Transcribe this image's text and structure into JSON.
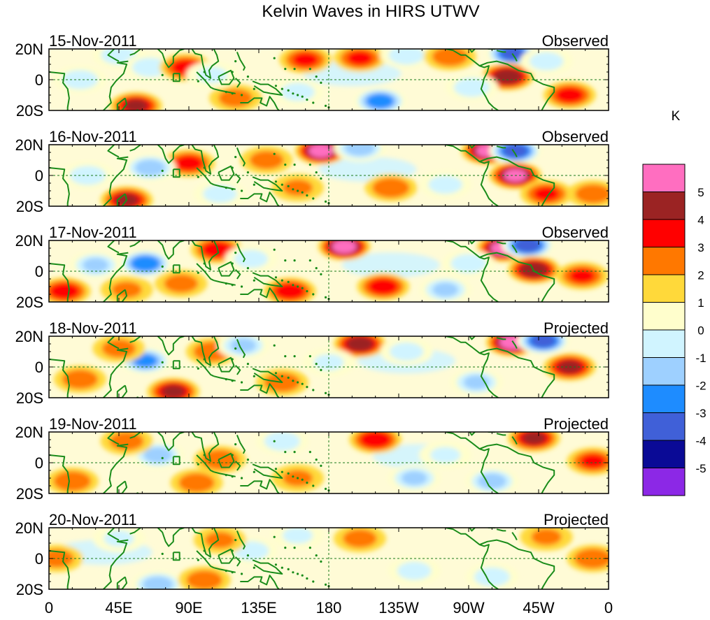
{
  "chart_data": {
    "type": "heatmap",
    "title": "Kelvin Waves in HIRS UTWV",
    "units": "K",
    "x_ticks": [
      "0",
      "45E",
      "90E",
      "135E",
      "180",
      "135W",
      "90W",
      "45W",
      "0"
    ],
    "y_ticks": [
      "20N",
      "0",
      "20S"
    ],
    "lon_range": [
      0,
      360
    ],
    "lat_range": [
      -20,
      20
    ],
    "colorbar": {
      "labels": [
        "5",
        "4",
        "3",
        "2",
        "1",
        "0",
        "-1",
        "-2",
        "-3",
        "-4",
        "-5"
      ],
      "colors": [
        "#ff6ec0",
        "#9b2323",
        "#ff0000",
        "#ff7800",
        "#ffd93a",
        "#fffecc",
        "#d0f4ff",
        "#9ed0ff",
        "#1e8cff",
        "#4060d8",
        "#0a0a96",
        "#8c28e6"
      ]
    },
    "panels": [
      {
        "date": "15-Nov-2011",
        "status": "Observed",
        "anomalies": [
          {
            "lon": 165,
            "lat": 13,
            "value": 2.5
          },
          {
            "lon": 200,
            "lat": 14,
            "value": 2.5
          },
          {
            "lon": 298,
            "lat": 17,
            "value": -4.5
          },
          {
            "lon": 295,
            "lat": 2,
            "value": 4.2
          },
          {
            "lon": 56,
            "lat": -17,
            "value": 3.5
          },
          {
            "lon": 213,
            "lat": -14,
            "value": -4.0
          },
          {
            "lon": 335,
            "lat": -10,
            "value": 2.8
          },
          {
            "lon": 45,
            "lat": 16,
            "value": -2.0
          },
          {
            "lon": 65,
            "lat": 8,
            "value": -2.0
          },
          {
            "lon": 88,
            "lat": 8,
            "value": 2.8
          },
          {
            "lon": 20,
            "lat": 0,
            "value": -2.0
          },
          {
            "lon": 272,
            "lat": -5,
            "value": -2.0
          },
          {
            "lon": 230,
            "lat": 16,
            "value": -2.0
          },
          {
            "lon": 258,
            "lat": 15,
            "value": 2.0
          },
          {
            "lon": 120,
            "lat": -12,
            "value": 1.8
          },
          {
            "lon": 160,
            "lat": -8,
            "value": -1.8
          },
          {
            "lon": 320,
            "lat": 12,
            "value": -1.8
          },
          {
            "lon": 105,
            "lat": 3,
            "value": -1.5
          }
        ]
      },
      {
        "date": "16-Nov-2011",
        "status": "Observed",
        "anomalies": [
          {
            "lon": 175,
            "lat": 16,
            "value": 4.8
          },
          {
            "lon": 282,
            "lat": 16,
            "value": 4.5
          },
          {
            "lon": 300,
            "lat": 16,
            "value": -4.8
          },
          {
            "lon": 300,
            "lat": 0,
            "value": 4.5
          },
          {
            "lon": 220,
            "lat": -8,
            "value": 2.2
          },
          {
            "lon": 90,
            "lat": 8,
            "value": 2.8
          },
          {
            "lon": 65,
            "lat": 5,
            "value": -3.0
          },
          {
            "lon": 50,
            "lat": -16,
            "value": 3.5
          },
          {
            "lon": 320,
            "lat": -12,
            "value": 2.5
          },
          {
            "lon": 350,
            "lat": -12,
            "value": 2.0
          },
          {
            "lon": 200,
            "lat": 18,
            "value": -3.0
          },
          {
            "lon": 25,
            "lat": 0,
            "value": -2.0
          },
          {
            "lon": 140,
            "lat": 10,
            "value": 1.8
          },
          {
            "lon": 110,
            "lat": -12,
            "value": -1.8
          },
          {
            "lon": 255,
            "lat": -6,
            "value": -1.8
          },
          {
            "lon": 160,
            "lat": -8,
            "value": 1.5
          }
        ]
      },
      {
        "date": "17-Nov-2011",
        "status": "Observed",
        "anomalies": [
          {
            "lon": 190,
            "lat": 16,
            "value": 4.8
          },
          {
            "lon": 292,
            "lat": 15,
            "value": 4.8
          },
          {
            "lon": 308,
            "lat": 17,
            "value": -5.0
          },
          {
            "lon": 312,
            "lat": 1,
            "value": 4.2
          },
          {
            "lon": 62,
            "lat": 5,
            "value": -4.3
          },
          {
            "lon": 108,
            "lat": 14,
            "value": 3.0
          },
          {
            "lon": 155,
            "lat": -13,
            "value": 3.0
          },
          {
            "lon": 215,
            "lat": -10,
            "value": 3.0
          },
          {
            "lon": 255,
            "lat": -12,
            "value": -2.5
          },
          {
            "lon": 10,
            "lat": -13,
            "value": 3.0
          },
          {
            "lon": 30,
            "lat": 4,
            "value": -2.5
          },
          {
            "lon": 343,
            "lat": -3,
            "value": 2.5
          },
          {
            "lon": 130,
            "lat": 8,
            "value": -1.8
          },
          {
            "lon": 85,
            "lat": -8,
            "value": 1.8
          },
          {
            "lon": 270,
            "lat": 5,
            "value": -2.0
          },
          {
            "lon": 50,
            "lat": -12,
            "value": 1.5
          }
        ]
      },
      {
        "date": "18-Nov-2011",
        "status": "Projected",
        "anomalies": [
          {
            "lon": 200,
            "lat": 15,
            "value": 4.0
          },
          {
            "lon": 298,
            "lat": 16,
            "value": 5.0
          },
          {
            "lon": 318,
            "lat": 17,
            "value": -4.8
          },
          {
            "lon": 335,
            "lat": 0,
            "value": 3.5
          },
          {
            "lon": 80,
            "lat": -16,
            "value": 3.5
          },
          {
            "lon": 62,
            "lat": 4,
            "value": -3.5
          },
          {
            "lon": 105,
            "lat": 10,
            "value": 2.2
          },
          {
            "lon": 125,
            "lat": 14,
            "value": -2.5
          },
          {
            "lon": 275,
            "lat": -10,
            "value": -2.5
          },
          {
            "lon": 20,
            "lat": -8,
            "value": 2.0
          },
          {
            "lon": 150,
            "lat": -10,
            "value": 2.0
          },
          {
            "lon": 230,
            "lat": 10,
            "value": -1.8
          },
          {
            "lon": 180,
            "lat": 3,
            "value": -1.5
          },
          {
            "lon": 45,
            "lat": 12,
            "value": 1.8
          }
        ]
      },
      {
        "date": "19-Nov-2011",
        "status": "Projected",
        "anomalies": [
          {
            "lon": 210,
            "lat": 15,
            "value": 3.2
          },
          {
            "lon": 312,
            "lat": 16,
            "value": 3.5
          },
          {
            "lon": 350,
            "lat": 1,
            "value": 2.5
          },
          {
            "lon": 70,
            "lat": 5,
            "value": -2.8
          },
          {
            "lon": 110,
            "lat": 2,
            "value": 2.2
          },
          {
            "lon": 150,
            "lat": 14,
            "value": -2.0
          },
          {
            "lon": 285,
            "lat": -12,
            "value": -2.8
          },
          {
            "lon": 235,
            "lat": -10,
            "value": -2.5
          },
          {
            "lon": 15,
            "lat": -12,
            "value": 2.2
          },
          {
            "lon": 50,
            "lat": 14,
            "value": 1.8
          },
          {
            "lon": 95,
            "lat": -13,
            "value": 2.0
          },
          {
            "lon": 160,
            "lat": -10,
            "value": 1.5
          },
          {
            "lon": 255,
            "lat": 5,
            "value": -1.5
          }
        ]
      },
      {
        "date": "20-Nov-2011",
        "status": "Projected",
        "anomalies": [
          {
            "lon": 5,
            "lat": 0,
            "value": 1.8
          },
          {
            "lon": 70,
            "lat": -17,
            "value": -3.0
          },
          {
            "lon": 100,
            "lat": -14,
            "value": 2.0
          },
          {
            "lon": 130,
            "lat": 5,
            "value": -2.0
          },
          {
            "lon": 200,
            "lat": 13,
            "value": 1.8
          },
          {
            "lon": 235,
            "lat": -8,
            "value": -1.8
          },
          {
            "lon": 285,
            "lat": -12,
            "value": -2.0
          },
          {
            "lon": 350,
            "lat": 0,
            "value": 2.2
          },
          {
            "lon": 320,
            "lat": 14,
            "value": 1.5
          },
          {
            "lon": 45,
            "lat": 13,
            "value": -1.5
          },
          {
            "lon": 160,
            "lat": 15,
            "value": -1.5
          },
          {
            "lon": 110,
            "lat": 12,
            "value": 1.5
          }
        ]
      }
    ]
  }
}
